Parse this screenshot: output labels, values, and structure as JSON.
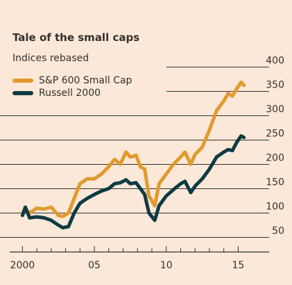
{
  "title": "Tale of the small caps",
  "subtitle": "Indices rebased",
  "chart_data": {
    "type": "line",
    "title": "Tale of the small caps",
    "subtitle": "Indices rebased",
    "xlabel": "",
    "ylabel": "",
    "xlim": [
      1999.5,
      2015.8
    ],
    "ylim": [
      35,
      400
    ],
    "y_ticks": [
      50,
      100,
      150,
      200,
      250,
      300,
      350,
      400
    ],
    "x_ticks": [
      {
        "label": "2000",
        "value": 2000
      },
      {
        "label": "05",
        "value": 2005
      },
      {
        "label": "10",
        "value": 2010
      },
      {
        "label": "15",
        "value": 2015
      }
    ],
    "grid": "horizontal",
    "legend_position": "top-left",
    "x": [
      2000.0,
      2000.2,
      2000.5,
      2001.0,
      2001.5,
      2002.0,
      2002.5,
      2002.8,
      2003.2,
      2003.6,
      2004.0,
      2004.5,
      2005.0,
      2005.5,
      2006.0,
      2006.4,
      2006.8,
      2007.2,
      2007.5,
      2007.9,
      2008.2,
      2008.5,
      2008.8,
      2009.2,
      2009.5,
      2010.0,
      2010.5,
      2011.0,
      2011.3,
      2011.7,
      2012.0,
      2012.5,
      2013.0,
      2013.5,
      2014.0,
      2014.3,
      2014.6,
      2014.9,
      2015.2,
      2015.4
    ],
    "series": [
      {
        "name": "S&P 600 Small Cap",
        "color": "#e09a2e",
        "values": [
          100,
          108,
          100,
          110,
          108,
          112,
          95,
          93,
          100,
          130,
          160,
          170,
          170,
          180,
          195,
          210,
          200,
          225,
          215,
          218,
          195,
          190,
          135,
          115,
          160,
          180,
          200,
          215,
          225,
          200,
          220,
          235,
          270,
          310,
          330,
          345,
          340,
          355,
          368,
          362
        ]
      },
      {
        "name": "Russell 2000",
        "color": "#0e3b43",
        "values": [
          95,
          112,
          90,
          92,
          90,
          85,
          75,
          70,
          72,
          100,
          120,
          130,
          138,
          145,
          150,
          160,
          162,
          168,
          160,
          162,
          150,
          138,
          100,
          85,
          115,
          135,
          148,
          160,
          165,
          142,
          155,
          170,
          190,
          215,
          225,
          230,
          228,
          245,
          258,
          255
        ]
      }
    ]
  }
}
